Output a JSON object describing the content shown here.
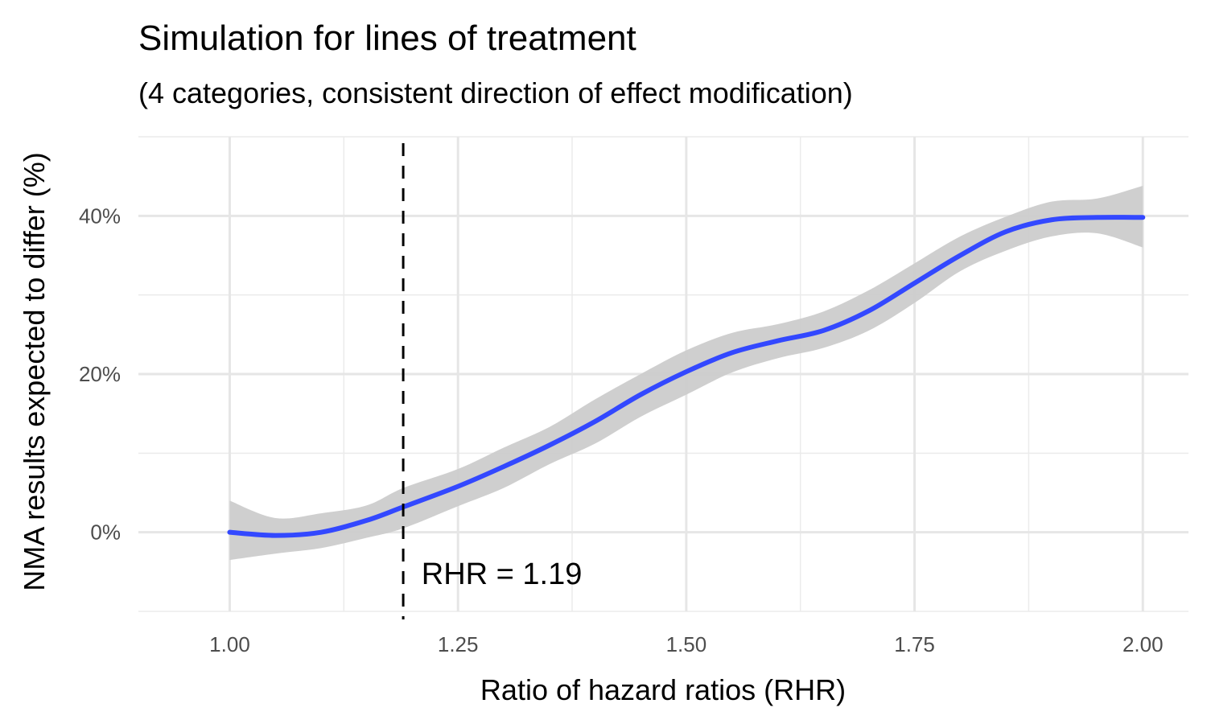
{
  "chart_data": {
    "type": "line",
    "title": "Simulation for lines of treatment",
    "subtitle": "(4 categories, consistent direction of effect modification)",
    "xlabel": "Ratio of hazard ratios (RHR)",
    "ylabel": "NMA results expected to differ (%)",
    "xlim": [
      0.9,
      2.05
    ],
    "ylim": [
      -10,
      50
    ],
    "x_ticks": [
      1.0,
      1.25,
      1.5,
      1.75,
      2.0
    ],
    "x_tick_labels": [
      "1.00",
      "1.25",
      "1.50",
      "1.75",
      "2.00"
    ],
    "y_ticks": [
      0,
      20,
      40
    ],
    "y_tick_labels": [
      "0%",
      "20%",
      "40%"
    ],
    "grid": true,
    "series": [
      {
        "color": "#3348ff",
        "x": [
          1.0,
          1.05,
          1.1,
          1.15,
          1.19,
          1.25,
          1.3,
          1.35,
          1.4,
          1.45,
          1.5,
          1.55,
          1.6,
          1.65,
          1.7,
          1.75,
          1.8,
          1.85,
          1.9,
          1.95,
          2.0
        ],
        "y": [
          0,
          -0.4,
          0,
          1.5,
          3.2,
          5.8,
          8.3,
          11,
          14,
          17.4,
          20.3,
          22.7,
          24.2,
          25.5,
          28,
          31.5,
          35,
          38,
          39.5,
          39.8,
          39.8
        ],
        "lower": [
          -3.5,
          -2.7,
          -2.0,
          -0.7,
          0.5,
          3.3,
          5.6,
          8.6,
          11.2,
          14.6,
          17.4,
          20.2,
          22.0,
          23.3,
          25.5,
          29.0,
          33.0,
          35.6,
          37.4,
          37.8,
          36.0
        ],
        "upper": [
          4.0,
          1.8,
          2.4,
          3.4,
          5.6,
          8.0,
          10.7,
          13.3,
          16.8,
          20.0,
          23.0,
          25.2,
          26.3,
          27.9,
          30.6,
          34.0,
          37.4,
          39.9,
          41.8,
          42.2,
          43.8
        ]
      }
    ],
    "ribbon_color": "#cccccc",
    "reference_line": {
      "x": 1.19,
      "style": "dashed",
      "color": "#000000"
    },
    "annotation": {
      "text": "RHR = 1.19",
      "x": 1.21,
      "y": -5.2
    }
  }
}
